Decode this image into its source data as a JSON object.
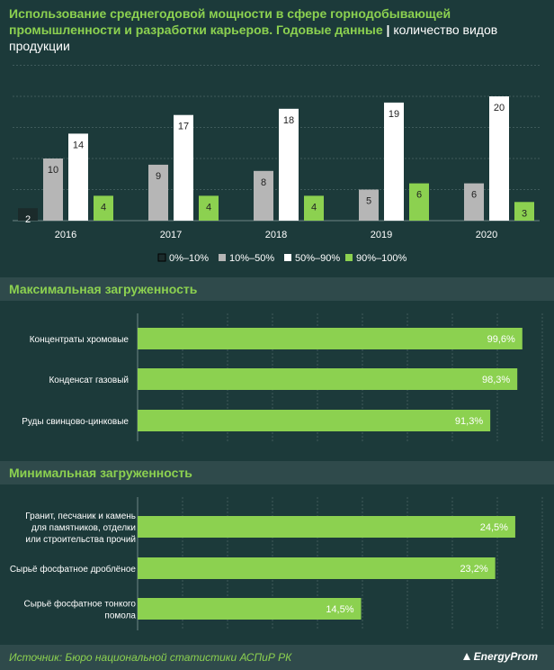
{
  "header": {
    "title": "Использование среднегодовой мощности в сфере горнодобывающей промышленности и разработки карьеров. Годовые данные",
    "separator": "|",
    "subtitle": "количество видов продукции"
  },
  "colors": {
    "background": "#1c3a3a",
    "band": "#2f4a4b",
    "accent_green": "#8cd150",
    "series": [
      "#1b2b2b",
      "#b6b6b6",
      "#ffffff",
      "#8cd150"
    ]
  },
  "chart_data": [
    {
      "type": "bar",
      "categories": [
        "2016",
        "2017",
        "2018",
        "2019",
        "2020"
      ],
      "series": [
        {
          "name": "0%–10%",
          "values": [
            2,
            null,
            null,
            null,
            null
          ]
        },
        {
          "name": "10%–50%",
          "values": [
            10,
            9,
            8,
            5,
            6
          ]
        },
        {
          "name": "50%–90%",
          "values": [
            14,
            17,
            18,
            19,
            20
          ]
        },
        {
          "name": "90%–100%",
          "values": [
            4,
            4,
            4,
            6,
            3
          ]
        }
      ],
      "ylim": [
        0,
        20
      ],
      "grid": true,
      "legend": "bottom"
    },
    {
      "type": "bar",
      "orientation": "horizontal",
      "title": "Максимальная загруженность",
      "categories": [
        "Концентраты хромовые",
        "Конденсат газовый",
        "Руды свинцово-цинковые"
      ],
      "values": [
        99.6,
        98.3,
        91.3
      ],
      "labels": [
        "99,6%",
        "98,3%",
        "91,3%"
      ],
      "xlim": [
        0,
        100
      ]
    },
    {
      "type": "bar",
      "orientation": "horizontal",
      "title": "Минимальная загруженность",
      "categories": [
        "Гранит, песчаник и камень для памятников, отделки или строительства прочий",
        "Сырьё фосфатное дроблёное",
        "Сырьё фосфатное тонкого помола"
      ],
      "category_lines": [
        [
          "Гранит, песчаник и камень",
          "для памятников, отделки",
          "или строительства прочий"
        ],
        [
          "Сырьё фосфатное дроблёное"
        ],
        [
          "Сырьё фосфатное тонкого",
          "помола"
        ]
      ],
      "values": [
        24.5,
        23.2,
        14.5
      ],
      "labels": [
        "24,5%",
        "23,2%",
        "14,5%"
      ],
      "xlim": [
        0,
        25
      ]
    }
  ],
  "footer": {
    "source": "Источник: Бюро национальной  статистики АСПиР РК",
    "logo": "EnergyProm"
  }
}
